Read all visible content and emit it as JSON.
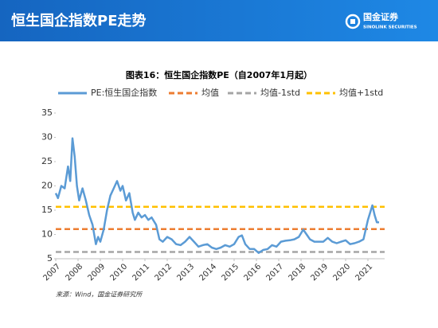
{
  "header": {
    "title": "恒生国企指数PE走势"
  },
  "logo": {
    "name": "国金证券",
    "subname": "SINOLINK SECURITIES"
  },
  "chart_data": {
    "type": "line",
    "title": "图表16：恒生国企指数PE（自2007年1月起）",
    "source": "来源：Wind，国金证券研究所",
    "x": [
      2007.0,
      2007.1,
      2007.25,
      2007.4,
      2007.55,
      2007.65,
      2007.75,
      2007.85,
      2007.95,
      2008.05,
      2008.2,
      2008.35,
      2008.5,
      2008.65,
      2008.8,
      2008.9,
      2009.0,
      2009.15,
      2009.3,
      2009.45,
      2009.6,
      2009.75,
      2009.9,
      2010.0,
      2010.15,
      2010.3,
      2010.45,
      2010.55,
      2010.7,
      2010.85,
      2011.0,
      2011.15,
      2011.3,
      2011.5,
      2011.65,
      2011.8,
      2012.0,
      2012.2,
      2012.4,
      2012.6,
      2012.8,
      2013.0,
      2013.2,
      2013.4,
      2013.6,
      2013.8,
      2014.0,
      2014.2,
      2014.4,
      2014.6,
      2014.8,
      2015.0,
      2015.2,
      2015.35,
      2015.5,
      2015.7,
      2015.9,
      2016.1,
      2016.3,
      2016.5,
      2016.7,
      2016.9,
      2017.1,
      2017.3,
      2017.5,
      2017.7,
      2017.9,
      2018.1,
      2018.25,
      2018.4,
      2018.6,
      2018.8,
      2019.0,
      2019.2,
      2019.4,
      2019.6,
      2019.8,
      2020.0,
      2020.2,
      2020.4,
      2020.6,
      2020.8,
      2020.9,
      2021.0,
      2021.1,
      2021.2,
      2021.3,
      2021.4,
      2021.5
    ],
    "series": [
      {
        "name": "PE:恒生国企指数",
        "color": "#5b9bd5",
        "values": [
          18.5,
          17.5,
          20,
          19.5,
          24,
          21,
          29.8,
          26,
          20,
          17,
          19.5,
          17,
          14,
          12,
          8,
          9.5,
          8.5,
          11,
          15,
          18,
          19.5,
          21,
          19,
          20,
          17,
          18.5,
          14.5,
          13,
          14.5,
          13.5,
          14,
          13,
          13.5,
          12,
          9,
          8.5,
          9.5,
          9,
          8,
          7.8,
          8.5,
          9.5,
          8.5,
          7.5,
          7.8,
          8,
          7.3,
          7,
          7.3,
          7.8,
          7.5,
          8,
          9.5,
          9.8,
          8,
          7,
          7,
          6.2,
          6.8,
          7,
          7.8,
          7.5,
          8.5,
          8.7,
          8.8,
          9,
          9.5,
          11,
          10,
          9,
          8.5,
          8.5,
          8.5,
          9.3,
          8.5,
          8.2,
          8.5,
          8.8,
          8,
          8.2,
          8.5,
          9,
          11,
          13,
          14.5,
          16,
          14,
          12.5,
          12.5
        ]
      }
    ],
    "reference_lines": [
      {
        "name": "均值",
        "color": "#ed7d31",
        "value": 11.1
      },
      {
        "name": "均值-1std",
        "color": "#a5a5a5",
        "value": 6.4
      },
      {
        "name": "均值+1std",
        "color": "#ffc000",
        "value": 15.7
      }
    ],
    "xlim": [
      2007,
      2021.75
    ],
    "xticks": [
      2007,
      2008,
      2009,
      2010,
      2011,
      2012,
      2013,
      2014,
      2015,
      2016,
      2017,
      2018,
      2019,
      2020,
      2021
    ],
    "ylim": [
      5,
      35
    ],
    "yticks": [
      5,
      10,
      15,
      20,
      25,
      30,
      35
    ]
  }
}
